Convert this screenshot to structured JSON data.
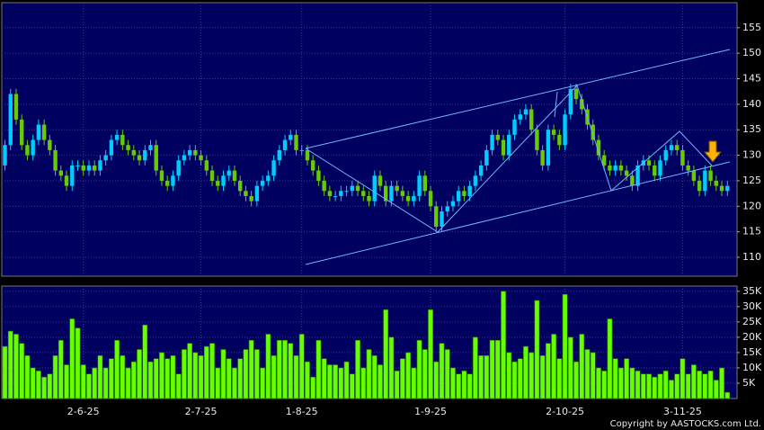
{
  "chart_data": {
    "type": "candlestick",
    "up_color": "#00ccff",
    "down_color": "#66cc00",
    "grid": true,
    "categories": [
      null,
      null,
      null,
      null,
      null,
      null,
      null,
      null,
      null,
      null,
      null,
      null,
      null,
      null,
      "2-6-25",
      null,
      null,
      null,
      null,
      null,
      null,
      null,
      null,
      null,
      null,
      null,
      null,
      null,
      null,
      null,
      null,
      null,
      null,
      null,
      null,
      "2-7-25",
      null,
      null,
      null,
      null,
      null,
      null,
      null,
      null,
      null,
      null,
      null,
      null,
      null,
      null,
      null,
      null,
      null,
      "1-8-25",
      null,
      null,
      null,
      null,
      null,
      null,
      null,
      null,
      null,
      null,
      null,
      null,
      null,
      null,
      null,
      null,
      null,
      null,
      null,
      null,
      null,
      null,
      "1-9-25",
      null,
      null,
      null,
      null,
      null,
      null,
      null,
      null,
      null,
      null,
      null,
      null,
      null,
      null,
      null,
      null,
      null,
      null,
      null,
      null,
      null,
      null,
      null,
      "2-10-25",
      null,
      null,
      null,
      null,
      null,
      null,
      null,
      null,
      null,
      null,
      null,
      null,
      null,
      null,
      null,
      null,
      null,
      null,
      null,
      null,
      "3-11-25",
      null,
      null,
      null,
      null,
      null,
      null,
      null,
      null
    ],
    "open": [
      128,
      132,
      142,
      137,
      132,
      130,
      133,
      136,
      133,
      131,
      127,
      126,
      124,
      128,
      128,
      127,
      128,
      127,
      129,
      130,
      133,
      134,
      132,
      131,
      130,
      129,
      131,
      132,
      127,
      125,
      124,
      126,
      129,
      130,
      131,
      130,
      129,
      127,
      125,
      124,
      126,
      127,
      125,
      123,
      122,
      121,
      124,
      125,
      126,
      129,
      131,
      133,
      134,
      131,
      131,
      129,
      127,
      125,
      123,
      122,
      122,
      123,
      123,
      124,
      123,
      122,
      121,
      126,
      124,
      121,
      124,
      123,
      122,
      121,
      122,
      126,
      123,
      120,
      116,
      119,
      120,
      121,
      123,
      122,
      124,
      126,
      128,
      131,
      134,
      133,
      130,
      134,
      137,
      138,
      139,
      135,
      131,
      128,
      135,
      134,
      132,
      138,
      143,
      141,
      139,
      136,
      133,
      130,
      128,
      127,
      128,
      127,
      126,
      124,
      128,
      129,
      128,
      126,
      129,
      131,
      132,
      131,
      128,
      127,
      125,
      123,
      127,
      125,
      124,
      123
    ],
    "high": [
      133,
      143,
      143,
      138,
      133,
      134,
      137,
      137,
      134,
      132,
      128,
      127,
      129,
      129,
      129,
      129,
      129,
      130,
      131,
      134,
      135,
      135,
      133,
      132,
      131,
      132,
      133,
      133,
      128,
      126,
      127,
      130,
      131,
      132,
      132,
      131,
      130,
      128,
      126,
      127,
      128,
      128,
      126,
      124,
      123,
      125,
      126,
      127,
      130,
      132,
      134,
      135,
      135,
      132,
      132,
      130,
      128,
      126,
      124,
      123,
      124,
      124,
      125,
      125,
      124,
      123,
      127,
      127,
      125,
      125,
      125,
      124,
      123,
      123,
      127,
      127,
      124,
      121,
      120,
      121,
      122,
      124,
      124,
      125,
      127,
      129,
      132,
      135,
      135,
      134,
      135,
      138,
      139,
      140,
      140,
      136,
      132,
      136,
      136,
      135,
      139,
      144,
      144,
      142,
      140,
      137,
      134,
      131,
      129,
      129,
      129,
      128,
      127,
      129,
      130,
      130,
      129,
      130,
      132,
      133,
      133,
      132,
      129,
      128,
      126,
      128,
      128,
      126,
      125,
      125
    ],
    "low": [
      127,
      131,
      136,
      131,
      129,
      129,
      132,
      132,
      130,
      126,
      125,
      123,
      123,
      127,
      126,
      126,
      126,
      126,
      128,
      129,
      132,
      131,
      130,
      129,
      128,
      128,
      130,
      126,
      124,
      123,
      123,
      125,
      128,
      129,
      129,
      128,
      126,
      124,
      123,
      123,
      125,
      124,
      122,
      121,
      120,
      120,
      123,
      124,
      125,
      128,
      130,
      132,
      130,
      130,
      128,
      126,
      124,
      122,
      121,
      121,
      121,
      122,
      122,
      122,
      121,
      120,
      120,
      123,
      120,
      120,
      122,
      121,
      120,
      120,
      121,
      122,
      119,
      115,
      115,
      118,
      119,
      120,
      121,
      121,
      123,
      125,
      127,
      130,
      132,
      129,
      129,
      133,
      136,
      137,
      134,
      130,
      127,
      127,
      133,
      131,
      131,
      137,
      140,
      138,
      135,
      132,
      129,
      127,
      126,
      126,
      126,
      125,
      123,
      123,
      127,
      127,
      125,
      125,
      128,
      130,
      130,
      127,
      126,
      124,
      122,
      122,
      124,
      123,
      122,
      122
    ],
    "close": [
      132,
      142,
      137,
      132,
      130,
      133,
      136,
      133,
      131,
      127,
      126,
      124,
      128,
      128,
      127,
      128,
      127,
      129,
      130,
      133,
      134,
      132,
      131,
      130,
      129,
      131,
      132,
      127,
      125,
      124,
      126,
      129,
      130,
      131,
      130,
      129,
      127,
      125,
      124,
      126,
      127,
      125,
      123,
      122,
      121,
      124,
      125,
      126,
      129,
      131,
      133,
      134,
      131,
      131,
      129,
      127,
      125,
      123,
      122,
      122,
      123,
      123,
      124,
      123,
      122,
      121,
      126,
      124,
      121,
      124,
      123,
      122,
      121,
      122,
      126,
      123,
      120,
      116,
      119,
      120,
      121,
      123,
      122,
      124,
      126,
      128,
      131,
      134,
      133,
      130,
      134,
      137,
      138,
      139,
      135,
      131,
      128,
      135,
      134,
      132,
      138,
      143,
      141,
      139,
      136,
      133,
      130,
      128,
      127,
      128,
      127,
      126,
      124,
      128,
      129,
      128,
      126,
      129,
      131,
      132,
      131,
      128,
      127,
      125,
      123,
      127,
      125,
      124,
      123,
      124
    ],
    "ylim": [
      106.3,
      159.9
    ],
    "yticks": [
      110,
      115,
      120,
      125,
      130,
      135,
      140,
      145,
      150,
      155
    ],
    "volume": {
      "color": "#66ff00",
      "values": [
        17000,
        22000,
        21000,
        18000,
        14000,
        10000,
        9000,
        7000,
        8000,
        14000,
        19000,
        11000,
        26000,
        23000,
        11000,
        8000,
        10000,
        14000,
        10000,
        13000,
        19000,
        14000,
        10000,
        12000,
        16000,
        24000,
        12000,
        13000,
        15000,
        13000,
        14000,
        8000,
        16000,
        18000,
        15000,
        14000,
        17000,
        18000,
        10000,
        16000,
        13000,
        10000,
        13000,
        16000,
        19000,
        16000,
        10000,
        21000,
        14000,
        19000,
        19000,
        18000,
        14000,
        21000,
        12000,
        7000,
        19000,
        13000,
        11000,
        11000,
        10000,
        12000,
        8000,
        19000,
        10000,
        16000,
        14000,
        11000,
        29000,
        20000,
        9000,
        13000,
        15000,
        10000,
        19000,
        16000,
        29000,
        12000,
        18000,
        16000,
        10000,
        8000,
        9000,
        8000,
        20000,
        14000,
        14000,
        19000,
        19000,
        35000,
        15000,
        12000,
        13000,
        17000,
        15000,
        32000,
        14000,
        18000,
        21000,
        13000,
        34000,
        20000,
        12000,
        21000,
        16000,
        15000,
        10000,
        9000,
        26000,
        13000,
        10000,
        13000,
        10000,
        9000,
        8000,
        8000,
        7000,
        8000,
        9000,
        6000,
        8000,
        13000,
        8000,
        11000,
        9000,
        8000,
        9000,
        6000,
        10000,
        2000
      ],
      "ylim": [
        0,
        36700
      ],
      "yticks": [
        {
          "value": 5000,
          "label": "5K"
        },
        {
          "value": 10000,
          "label": "10K"
        },
        {
          "value": 15000,
          "label": "15K"
        },
        {
          "value": 20000,
          "label": "20K"
        },
        {
          "value": 25000,
          "label": "25K"
        },
        {
          "value": 30000,
          "label": "30K"
        },
        {
          "value": 35000,
          "label": "35K"
        }
      ]
    },
    "credit": "Copyright by AASTOCKS.com Ltd."
  }
}
